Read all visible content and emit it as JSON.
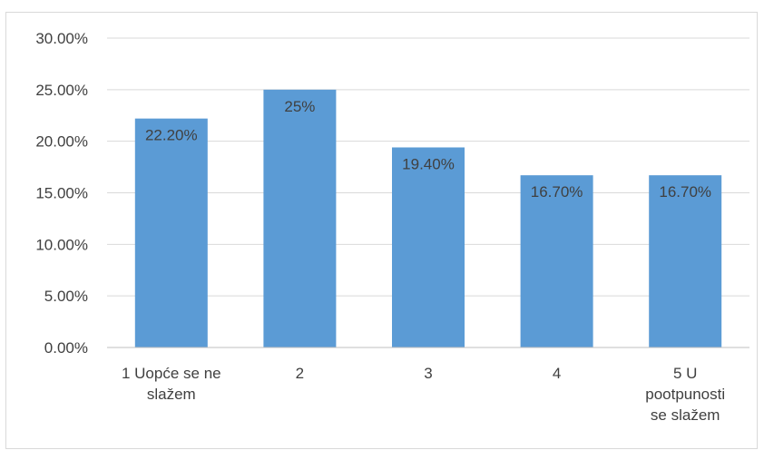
{
  "chart_data": {
    "type": "bar",
    "categories": [
      [
        "1 Uopće se ne",
        "slažem"
      ],
      [
        "2"
      ],
      [
        "3"
      ],
      [
        "4"
      ],
      [
        "5 U",
        "pootpunosti",
        "se slažem"
      ]
    ],
    "values": [
      22.2,
      25,
      19.4,
      16.7,
      16.7
    ],
    "data_labels": [
      "22.20%",
      "25%",
      "19.40%",
      "16.70%",
      "16.70%"
    ],
    "y_ticks": [
      "0.00%",
      "5.00%",
      "10.00%",
      "15.00%",
      "20.00%",
      "25.00%",
      "30.00%"
    ],
    "ylim": [
      0,
      30
    ],
    "y_tick_step": 5,
    "title": "",
    "xlabel": "",
    "ylabel": "",
    "grid": true,
    "legend": "none",
    "bar_color": "#5b9bd5",
    "grid_color": "#d9d9d9",
    "text_color": "#404040"
  }
}
